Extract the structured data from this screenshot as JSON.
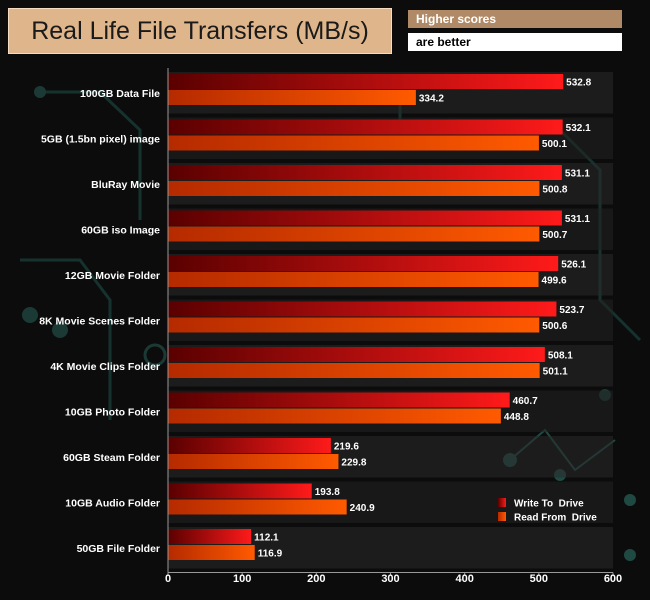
{
  "chart_data": {
    "type": "bar",
    "orientation": "horizontal",
    "title": "Real Life File Transfers (MB/s)",
    "notes": [
      "Higher scores",
      "are better"
    ],
    "categories": [
      "100GB Data File",
      "5GB (1.5bn pixel) image",
      "BluRay Movie",
      "60GB iso Image",
      "12GB Movie Folder",
      "8K Movie Scenes Folder",
      "4K Movie Clips Folder",
      "10GB Photo Folder",
      "60GB Steam Folder",
      "10GB Audio Folder",
      "50GB File Folder"
    ],
    "series": [
      {
        "name": "Write To  Drive",
        "color": "#ff1a1a",
        "values": [
          532.8,
          532.1,
          531.1,
          531.1,
          526.1,
          523.7,
          508.1,
          460.7,
          219.6,
          193.8,
          112.1
        ],
        "labels": [
          "532.8",
          "532.1",
          "531.1",
          "531.1",
          "526.1",
          "523.7",
          "508.1",
          "460.7",
          "219.6",
          "193.8",
          "112.1"
        ]
      },
      {
        "name": "Read From  Drive",
        "color": "#ff5a00",
        "values": [
          334.2,
          500.1,
          500.8,
          500.7,
          499.6,
          500.6,
          501.1,
          448.8,
          229.8,
          240.9,
          116.9
        ],
        "labels": [
          "334.2",
          "500.1",
          "500.8",
          "500.7",
          "499.6",
          "500.6",
          "501.1",
          "448.8",
          "229.8",
          "240.9",
          "116.9"
        ]
      }
    ],
    "xlim": [
      0,
      600
    ],
    "xticks": [
      "0",
      "100",
      "200",
      "300",
      "400",
      "500",
      "600"
    ],
    "legend_position": "bottom-right",
    "grid": false
  }
}
